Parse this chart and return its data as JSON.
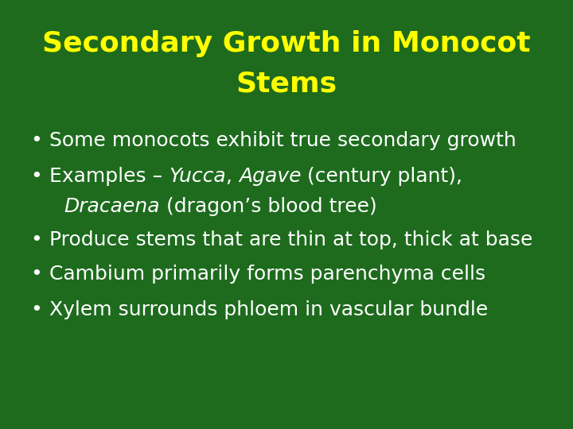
{
  "title_line1": "Secondary Growth in Monocot",
  "title_line2": "Stems",
  "title_color": "#FFFF00",
  "background_color": "#1E6B1E",
  "bullet_color": "#FFFFFF",
  "title_fontsize": 26,
  "bullet_fontsize": 18,
  "figsize": [
    7.2,
    5.4
  ],
  "dpi": 100,
  "bullet_segments": [
    [
      [
        "Some monocots exhibit true secondary growth",
        false
      ]
    ],
    [
      [
        "Examples – ",
        false
      ],
      [
        "Yucca",
        true
      ],
      [
        ", ",
        false
      ],
      [
        "Agave",
        true
      ],
      [
        " (century plant),",
        false
      ]
    ],
    [
      [
        "Dracaena",
        true
      ],
      [
        " (dragon’s blood tree)",
        false
      ]
    ],
    [
      [
        "Produce stems that are thin at top, thick at base",
        false
      ]
    ],
    [
      [
        "Cambium primarily forms parenchyma cells",
        false
      ]
    ],
    [
      [
        "Xylem surrounds phloem in vascular bundle",
        false
      ]
    ]
  ],
  "has_bullet": [
    true,
    true,
    false,
    true,
    true,
    true
  ],
  "indent_second_line": true
}
